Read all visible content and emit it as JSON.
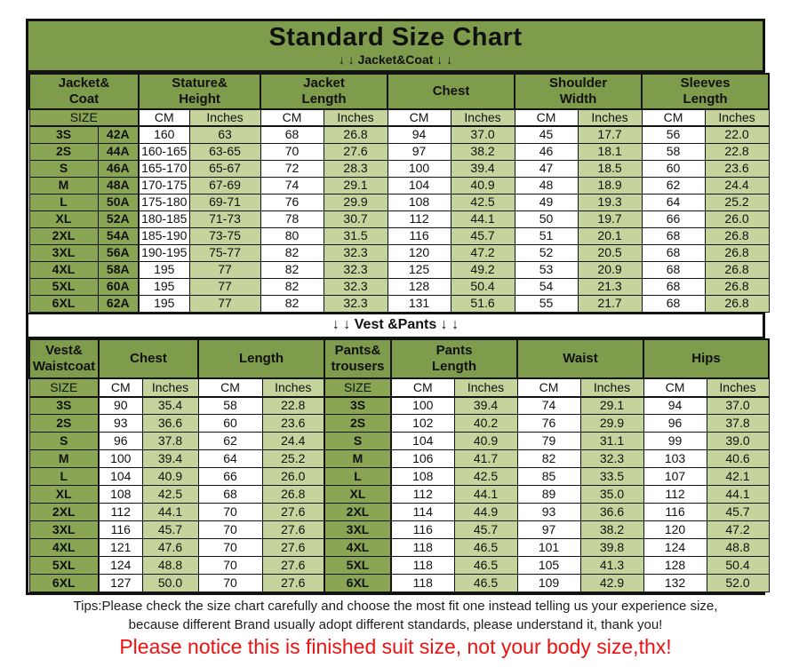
{
  "title": "Standard Size Chart",
  "colors": {
    "header_green": "#7f9c4d",
    "size_cell_green": "#8aa655",
    "light_green": "#c4d49c",
    "cell_white": "#ffffff",
    "border_black": "#131313",
    "notice_red": "#ee1111",
    "tips_text": "#1d1d1d"
  },
  "jacket_table": {
    "banner": "↓ ↓  Jacket&Coat ↓ ↓",
    "group_headers": [
      "Jacket&\nCoat",
      "Stature&\nHeight",
      "Jacket\nLength",
      "Chest",
      "Shoulder\nWidth",
      "Sleeves\nLength"
    ],
    "unit_headers": [
      "SIZE",
      "CM",
      "Inches",
      "CM",
      "Inches",
      "CM",
      "Inches",
      "CM",
      "Inches",
      "CM",
      "Inches"
    ],
    "rows": [
      [
        "3S",
        "42A",
        "160",
        "63",
        "68",
        "26.8",
        "94",
        "37.0",
        "45",
        "17.7",
        "56",
        "22.0"
      ],
      [
        "2S",
        "44A",
        "160-165",
        "63-65",
        "70",
        "27.6",
        "97",
        "38.2",
        "46",
        "18.1",
        "58",
        "22.8"
      ],
      [
        "S",
        "46A",
        "165-170",
        "65-67",
        "72",
        "28.3",
        "100",
        "39.4",
        "47",
        "18.5",
        "60",
        "23.6"
      ],
      [
        "M",
        "48A",
        "170-175",
        "67-69",
        "74",
        "29.1",
        "104",
        "40.9",
        "48",
        "18.9",
        "62",
        "24.4"
      ],
      [
        "L",
        "50A",
        "175-180",
        "69-71",
        "76",
        "29.9",
        "108",
        "42.5",
        "49",
        "19.3",
        "64",
        "25.2"
      ],
      [
        "XL",
        "52A",
        "180-185",
        "71-73",
        "78",
        "30.7",
        "112",
        "44.1",
        "50",
        "19.7",
        "66",
        "26.0"
      ],
      [
        "2XL",
        "54A",
        "185-190",
        "73-75",
        "80",
        "31.5",
        "116",
        "45.7",
        "51",
        "20.1",
        "68",
        "26.8"
      ],
      [
        "3XL",
        "56A",
        "190-195",
        "75-77",
        "82",
        "32.3",
        "120",
        "47.2",
        "52",
        "20.5",
        "68",
        "26.8"
      ],
      [
        "4XL",
        "58A",
        "195",
        "77",
        "82",
        "32.3",
        "125",
        "49.2",
        "53",
        "20.9",
        "68",
        "26.8"
      ],
      [
        "5XL",
        "60A",
        "195",
        "77",
        "82",
        "32.3",
        "128",
        "50.4",
        "54",
        "21.3",
        "68",
        "26.8"
      ],
      [
        "6XL",
        "62A",
        "195",
        "77",
        "82",
        "32.3",
        "131",
        "51.6",
        "55",
        "21.7",
        "68",
        "26.8"
      ]
    ]
  },
  "vest_table": {
    "banner": "↓ ↓  Vest &Pants ↓ ↓",
    "group_headers": [
      "Vest&\nWaistcoat",
      "Chest",
      "Length",
      "Pants&\ntrousers",
      "Pants\nLength",
      "Waist",
      "Hips"
    ],
    "unit_headers": [
      "SIZE",
      "CM",
      "Inches",
      "CM",
      "Inches",
      "SIZE",
      "CM",
      "Inches",
      "CM",
      "Inches",
      "CM",
      "Inches"
    ],
    "rows": [
      [
        "3S",
        "90",
        "35.4",
        "58",
        "22.8",
        "3S",
        "100",
        "39.4",
        "74",
        "29.1",
        "94",
        "37.0"
      ],
      [
        "2S",
        "93",
        "36.6",
        "60",
        "23.6",
        "2S",
        "102",
        "40.2",
        "76",
        "29.9",
        "96",
        "37.8"
      ],
      [
        "S",
        "96",
        "37.8",
        "62",
        "24.4",
        "S",
        "104",
        "40.9",
        "79",
        "31.1",
        "99",
        "39.0"
      ],
      [
        "M",
        "100",
        "39.4",
        "64",
        "25.2",
        "M",
        "106",
        "41.7",
        "82",
        "32.3",
        "103",
        "40.6"
      ],
      [
        "L",
        "104",
        "40.9",
        "66",
        "26.0",
        "L",
        "108",
        "42.5",
        "85",
        "33.5",
        "107",
        "42.1"
      ],
      [
        "XL",
        "108",
        "42.5",
        "68",
        "26.8",
        "XL",
        "112",
        "44.1",
        "89",
        "35.0",
        "112",
        "44.1"
      ],
      [
        "2XL",
        "112",
        "44.1",
        "70",
        "27.6",
        "2XL",
        "114",
        "44.9",
        "93",
        "36.6",
        "116",
        "45.7"
      ],
      [
        "3XL",
        "116",
        "45.7",
        "70",
        "27.6",
        "3XL",
        "116",
        "45.7",
        "97",
        "38.2",
        "120",
        "47.2"
      ],
      [
        "4XL",
        "121",
        "47.6",
        "70",
        "27.6",
        "4XL",
        "118",
        "46.5",
        "101",
        "39.8",
        "124",
        "48.8"
      ],
      [
        "5XL",
        "124",
        "48.8",
        "70",
        "27.6",
        "5XL",
        "118",
        "46.5",
        "105",
        "41.3",
        "128",
        "50.4"
      ],
      [
        "6XL",
        "127",
        "50.0",
        "70",
        "27.6",
        "6XL",
        "118",
        "46.5",
        "109",
        "42.9",
        "132",
        "52.0"
      ]
    ]
  },
  "footer": {
    "tips_line1": "Tips:Please check the size chart carefully and choose the most fit one instead telling us your experience size,",
    "tips_line2": "because different Brand usually adopt different standards, please understand it, thank you!",
    "notice": "Please notice this is finished suit size, not your body size,thx!"
  }
}
